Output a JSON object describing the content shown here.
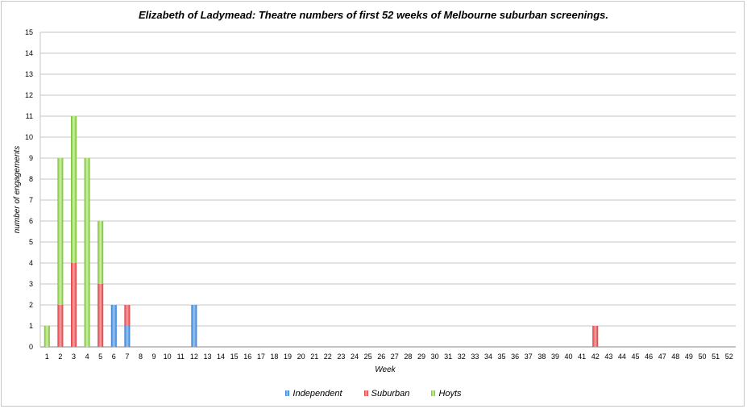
{
  "chart_data": {
    "type": "bar",
    "stacked": true,
    "title": "Elizabeth of Ladymead: Theatre numbers of first 52 weeks of Melbourne suburban screenings.",
    "xlabel": "Week",
    "ylabel": "number of engagements",
    "ylim": [
      0,
      15
    ],
    "y_ticks": [
      "0",
      "1",
      "2",
      "3",
      "4",
      "5",
      "6",
      "7",
      "8",
      "9",
      "10",
      "11",
      "12",
      "13",
      "14",
      "15"
    ],
    "grid": true,
    "legend_position": "bottom",
    "categories": [
      "1",
      "2",
      "3",
      "4",
      "5",
      "6",
      "7",
      "8",
      "9",
      "10",
      "11",
      "12",
      "13",
      "14",
      "15",
      "16",
      "17",
      "18",
      "19",
      "20",
      "21",
      "22",
      "23",
      "24",
      "25",
      "26",
      "27",
      "28",
      "29",
      "30",
      "31",
      "32",
      "33",
      "34",
      "35",
      "36",
      "37",
      "38",
      "39",
      "40",
      "41",
      "42",
      "43",
      "44",
      "45",
      "46",
      "47",
      "48",
      "49",
      "50",
      "51",
      "52"
    ],
    "series": [
      {
        "name": "Independent",
        "color": "#4a90d9",
        "values": [
          0,
          0,
          0,
          0,
          0,
          2,
          1,
          0,
          0,
          0,
          0,
          2,
          0,
          0,
          0,
          0,
          0,
          0,
          0,
          0,
          0,
          0,
          0,
          0,
          0,
          0,
          0,
          0,
          0,
          0,
          0,
          0,
          0,
          0,
          0,
          0,
          0,
          0,
          0,
          0,
          0,
          0,
          0,
          0,
          0,
          0,
          0,
          0,
          0,
          0,
          0,
          0
        ]
      },
      {
        "name": "Suburban",
        "color": "#e8474a",
        "values": [
          0,
          2,
          4,
          0,
          3,
          0,
          1,
          0,
          0,
          0,
          0,
          0,
          0,
          0,
          0,
          0,
          0,
          0,
          0,
          0,
          0,
          0,
          0,
          0,
          0,
          0,
          0,
          0,
          0,
          0,
          0,
          0,
          0,
          0,
          0,
          0,
          0,
          0,
          0,
          0,
          0,
          1,
          0,
          0,
          0,
          0,
          0,
          0,
          0,
          0,
          0,
          0
        ]
      },
      {
        "name": "Hoyts",
        "color": "#7ec83a",
        "values": [
          1,
          7,
          7,
          9,
          3,
          0,
          0,
          0,
          0,
          0,
          0,
          0,
          0,
          0,
          0,
          0,
          0,
          0,
          0,
          0,
          0,
          0,
          0,
          0,
          0,
          0,
          0,
          0,
          0,
          0,
          0,
          0,
          0,
          0,
          0,
          0,
          0,
          0,
          0,
          0,
          0,
          0,
          0,
          0,
          0,
          0,
          0,
          0,
          0,
          0,
          0,
          0
        ]
      }
    ]
  }
}
